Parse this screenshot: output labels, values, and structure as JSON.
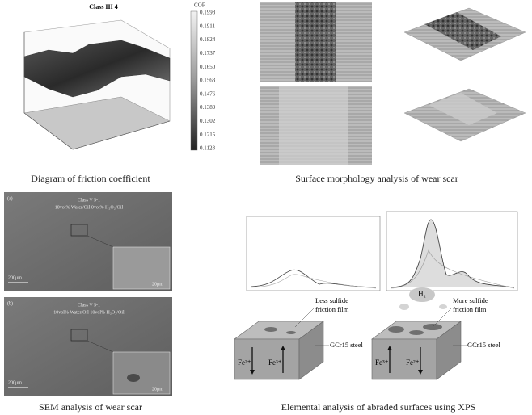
{
  "friction_panel": {
    "title": "Class III 4",
    "colorbar_title": "COF",
    "colorbar_labels": [
      "0.1998",
      "0.1911",
      "0.1824",
      "0.1737",
      "0.1650",
      "0.1563",
      "0.1476",
      "0.1389",
      "0.1302",
      "0.1215",
      "0.1128"
    ],
    "caption": "Diagram of friction coefficient"
  },
  "morphology_panel": {
    "caption": "Surface morphology analysis of wear scar"
  },
  "sem_panel": {
    "images": [
      {
        "label": "(a)",
        "sample": "Class V 5-1",
        "condition": "10vol% Water/Oil    0vol% H₂O₂/Oil",
        "scale_large": "200μm",
        "scale_small": "20μm"
      },
      {
        "label": "(b)",
        "sample": "Class V 5-1",
        "condition": "10vol% Water/Oil    10vol% H₂O₂/Oil",
        "scale_large": "200μm",
        "scale_small": "20μm"
      }
    ],
    "caption": "SEM analysis of wear scar"
  },
  "xps_panel": {
    "diagrams": [
      {
        "film": [
          "Less sulfide",
          "friction film"
        ],
        "steel": "GCr15 steel",
        "ion_left": "Fe²⁺",
        "ion_right": "Fe³⁺"
      },
      {
        "gas": "H₂",
        "film": [
          "More sulfide",
          "friction film"
        ],
        "steel": "GCr15 steel",
        "ion_left": "Fe³⁺",
        "ion_right": "Fe²⁺"
      }
    ],
    "caption": "Elemental analysis of abraded surfaces using XPS"
  }
}
